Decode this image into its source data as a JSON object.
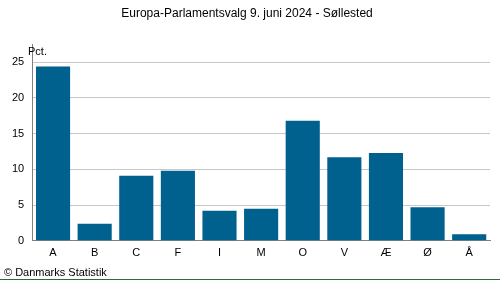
{
  "chart_data": {
    "type": "bar",
    "title": "Europa-Parlamentsvalg 9. juni 2024 - Søllested",
    "y_label": "Pct.",
    "source": "© Danmarks Statistik",
    "categories": [
      "A",
      "B",
      "C",
      "F",
      "I",
      "M",
      "O",
      "V",
      "Æ",
      "Ø",
      "Å"
    ],
    "values": [
      24.4,
      2.4,
      9.1,
      9.8,
      4.2,
      4.5,
      16.8,
      11.7,
      12.3,
      4.7,
      0.9
    ],
    "color": "#00618f",
    "ylim": [
      0,
      27.5
    ],
    "yticks": [
      0,
      5,
      10,
      15,
      20,
      25
    ],
    "grid": true
  }
}
